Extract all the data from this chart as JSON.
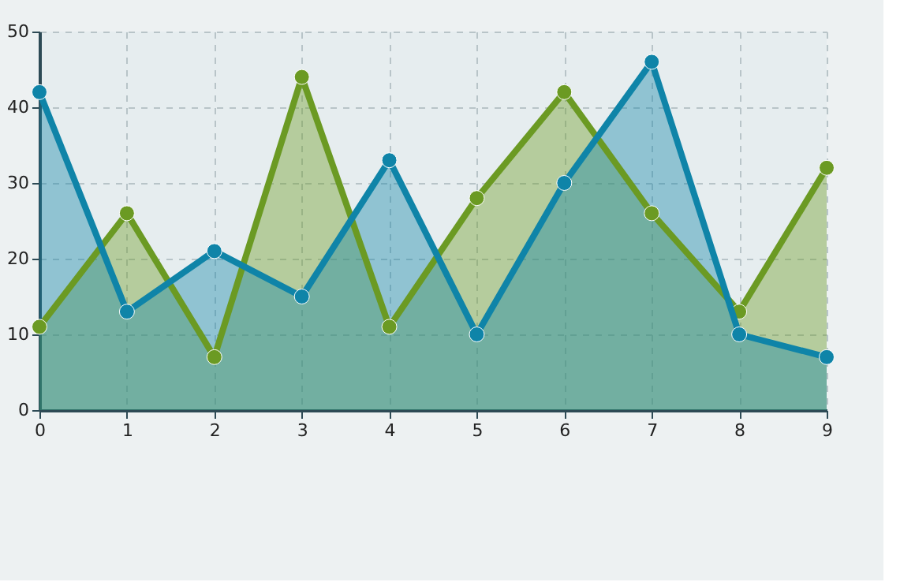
{
  "chart_data": {
    "type": "area",
    "x": [
      0,
      1,
      2,
      3,
      4,
      5,
      6,
      7,
      8,
      9
    ],
    "series": [
      {
        "color": "#6b9a23",
        "values": [
          11,
          26,
          7,
          44,
          11,
          28,
          42,
          26,
          13,
          32
        ]
      },
      {
        "color": "#0f84a8",
        "values": [
          42,
          13,
          21,
          15,
          33,
          10,
          30,
          46,
          10,
          7
        ]
      }
    ],
    "xlim": [
      0,
      9
    ],
    "xticks": [
      0,
      1,
      2,
      3,
      4,
      5,
      6,
      7,
      8,
      9
    ],
    "ylim": [
      0,
      50
    ],
    "yticks": [
      0,
      10,
      20,
      30,
      40,
      50
    ],
    "grid": true,
    "marker": "circle",
    "line_style": "solid"
  }
}
